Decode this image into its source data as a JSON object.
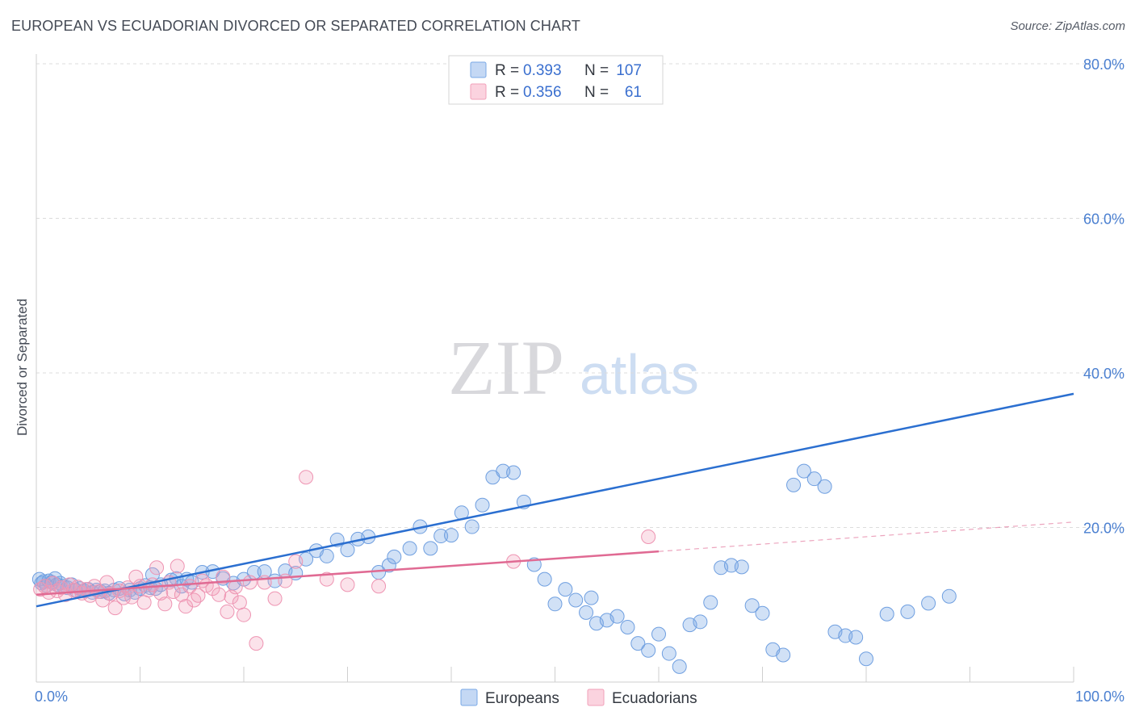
{
  "title": "EUROPEAN VS ECUADORIAN DIVORCED OR SEPARATED CORRELATION CHART",
  "source": "Source: ZipAtlas.com",
  "colors": {
    "europeans": "#7aa9e6",
    "europeans_line": "#2b6fd0",
    "ecuadorians": "#f2a0ba",
    "ecuadorians_line": "#e06a93",
    "tick_text": "#4a7fd0"
  },
  "chart_data": {
    "type": "scatter",
    "title": "EUROPEAN VS ECUADORIAN DIVORCED OR SEPARATED CORRELATION CHART",
    "xlabel": "",
    "ylabel": "Divorced or Separated",
    "xlim": [
      0,
      100
    ],
    "ylim": [
      0,
      80
    ],
    "x_tick_labels": {
      "min": "0.0%",
      "max": "100.0%"
    },
    "y_tick_labels": [
      "20.0%",
      "40.0%",
      "60.0%",
      "80.0%"
    ],
    "y_ticks": [
      20,
      40,
      60,
      80
    ],
    "grid": true,
    "legend": {
      "placement": "top-center",
      "rows": [
        {
          "r_label": "R =",
          "r_value": "0.393",
          "n_label": "N =",
          "n_value": "107"
        },
        {
          "r_label": "R =",
          "r_value": "0.356",
          "n_label": "N =",
          "n_value": "61"
        }
      ]
    },
    "series": [
      {
        "name": "Europeans",
        "trend": {
          "x0": 0,
          "y0": 9.8,
          "x1": 100,
          "y1": 37.3
        },
        "points": [
          [
            0.3,
            13.3
          ],
          [
            0.5,
            12.8
          ],
          [
            0.7,
            13.0
          ],
          [
            1.0,
            12.5
          ],
          [
            1.2,
            13.1
          ],
          [
            1.5,
            12.9
          ],
          [
            1.8,
            13.4
          ],
          [
            2.0,
            12.6
          ],
          [
            2.3,
            12.8
          ],
          [
            2.6,
            12.4
          ],
          [
            3.0,
            12.2
          ],
          [
            3.4,
            12.6
          ],
          [
            3.8,
            11.9
          ],
          [
            4.2,
            12.1
          ],
          [
            4.6,
            11.8
          ],
          [
            5.0,
            12.0
          ],
          [
            5.4,
            11.6
          ],
          [
            5.8,
            11.9
          ],
          [
            6.2,
            11.7
          ],
          [
            6.6,
            11.8
          ],
          [
            7.0,
            11.5
          ],
          [
            7.5,
            11.9
          ],
          [
            8.0,
            12.1
          ],
          [
            8.5,
            11.4
          ],
          [
            9.0,
            11.9
          ],
          [
            9.5,
            11.6
          ],
          [
            10.0,
            12.1
          ],
          [
            10.5,
            12.5
          ],
          [
            11.0,
            12.2
          ],
          [
            11.5,
            12.1
          ],
          [
            12.0,
            12.6
          ],
          [
            11.2,
            13.9
          ],
          [
            13.0,
            13.2
          ],
          [
            13.5,
            13.4
          ],
          [
            14.0,
            12.4
          ],
          [
            14.5,
            13.3
          ],
          [
            15.0,
            12.9
          ],
          [
            16.0,
            14.2
          ],
          [
            17.0,
            14.3
          ],
          [
            18.0,
            13.4
          ],
          [
            19.0,
            12.8
          ],
          [
            20.0,
            13.3
          ],
          [
            21.0,
            14.2
          ],
          [
            22.0,
            14.3
          ],
          [
            23.0,
            13.1
          ],
          [
            24.0,
            14.4
          ],
          [
            25.0,
            14.1
          ],
          [
            26.0,
            15.9
          ],
          [
            27.0,
            17.0
          ],
          [
            28.0,
            16.3
          ],
          [
            29.0,
            18.4
          ],
          [
            30.0,
            17.1
          ],
          [
            31.0,
            18.5
          ],
          [
            32.0,
            18.8
          ],
          [
            33.0,
            14.2
          ],
          [
            34.0,
            15.1
          ],
          [
            34.5,
            16.2
          ],
          [
            36.0,
            17.3
          ],
          [
            37.0,
            20.1
          ],
          [
            38.0,
            17.3
          ],
          [
            39.0,
            18.9
          ],
          [
            40.0,
            19.0
          ],
          [
            41.0,
            21.9
          ],
          [
            42.0,
            20.1
          ],
          [
            43.0,
            22.9
          ],
          [
            44.0,
            26.5
          ],
          [
            45.0,
            27.3
          ],
          [
            46.0,
            27.1
          ],
          [
            47.0,
            23.3
          ],
          [
            48.0,
            15.2
          ],
          [
            49.0,
            13.3
          ],
          [
            50.0,
            10.1
          ],
          [
            51.0,
            12.0
          ],
          [
            52.0,
            10.6
          ],
          [
            53.0,
            9.0
          ],
          [
            53.5,
            10.9
          ],
          [
            54.0,
            7.6
          ],
          [
            55.0,
            8.0
          ],
          [
            56.0,
            8.5
          ],
          [
            57.0,
            7.1
          ],
          [
            58.0,
            5.0
          ],
          [
            59.0,
            4.1
          ],
          [
            60.0,
            6.2
          ],
          [
            61.0,
            3.7
          ],
          [
            62.0,
            2.0
          ],
          [
            63.0,
            7.4
          ],
          [
            64.0,
            7.8
          ],
          [
            65.0,
            10.3
          ],
          [
            66.0,
            14.8
          ],
          [
            67.0,
            15.1
          ],
          [
            68.0,
            14.9
          ],
          [
            69.0,
            9.9
          ],
          [
            70.0,
            8.9
          ],
          [
            71.0,
            4.2
          ],
          [
            72.0,
            3.5
          ],
          [
            73.0,
            25.5
          ],
          [
            74.0,
            27.3
          ],
          [
            75.0,
            26.3
          ],
          [
            76.0,
            25.3
          ],
          [
            77.0,
            6.5
          ],
          [
            78.0,
            6.0
          ],
          [
            79.0,
            5.8
          ],
          [
            80.0,
            3.0
          ],
          [
            82.0,
            8.8
          ],
          [
            84.0,
            9.1
          ],
          [
            86.0,
            10.2
          ],
          [
            88.0,
            11.1
          ]
        ]
      },
      {
        "name": "Ecuadorians",
        "trend": {
          "x0": 0,
          "y0": 11.3,
          "x1": 60,
          "y1": 16.9,
          "dashed_to_x": 100,
          "dashed_to_y": 20.7
        },
        "points": [
          [
            0.4,
            12.0
          ],
          [
            0.8,
            12.4
          ],
          [
            1.2,
            11.6
          ],
          [
            1.6,
            12.8
          ],
          [
            2.0,
            11.8
          ],
          [
            2.4,
            12.2
          ],
          [
            2.8,
            11.3
          ],
          [
            3.2,
            12.6
          ],
          [
            3.6,
            11.9
          ],
          [
            4.0,
            12.3
          ],
          [
            4.4,
            11.5
          ],
          [
            4.8,
            12.0
          ],
          [
            5.2,
            11.2
          ],
          [
            5.6,
            12.4
          ],
          [
            6.0,
            11.7
          ],
          [
            6.4,
            10.6
          ],
          [
            6.8,
            12.9
          ],
          [
            7.2,
            11.4
          ],
          [
            7.6,
            9.6
          ],
          [
            8.0,
            11.8
          ],
          [
            8.4,
            10.9
          ],
          [
            8.8,
            12.2
          ],
          [
            9.2,
            11.0
          ],
          [
            9.6,
            13.6
          ],
          [
            10.0,
            12.4
          ],
          [
            10.4,
            10.3
          ],
          [
            10.8,
            11.9
          ],
          [
            11.2,
            12.6
          ],
          [
            11.6,
            14.8
          ],
          [
            12.0,
            11.5
          ],
          [
            12.4,
            10.1
          ],
          [
            12.8,
            12.9
          ],
          [
            13.2,
            11.7
          ],
          [
            13.6,
            15.0
          ],
          [
            14.0,
            11.3
          ],
          [
            14.4,
            9.8
          ],
          [
            14.8,
            12.4
          ],
          [
            15.2,
            10.6
          ],
          [
            15.6,
            11.2
          ],
          [
            16.0,
            13.1
          ],
          [
            16.4,
            12.5
          ],
          [
            17.0,
            12.1
          ],
          [
            17.6,
            11.3
          ],
          [
            18.0,
            13.6
          ],
          [
            18.4,
            9.1
          ],
          [
            18.8,
            11.0
          ],
          [
            19.2,
            12.3
          ],
          [
            19.6,
            10.3
          ],
          [
            20.0,
            8.7
          ],
          [
            20.6,
            12.9
          ],
          [
            21.2,
            5.0
          ],
          [
            22.0,
            12.9
          ],
          [
            23.0,
            10.8
          ],
          [
            24.0,
            13.1
          ],
          [
            25.0,
            15.6
          ],
          [
            26.0,
            26.5
          ],
          [
            28.0,
            13.3
          ],
          [
            30.0,
            12.6
          ],
          [
            33.0,
            12.4
          ],
          [
            46.0,
            15.6
          ],
          [
            59.0,
            18.8
          ]
        ]
      }
    ]
  },
  "bottom_legend": [
    "Europeans",
    "Ecuadorians"
  ],
  "watermark": {
    "zip": "ZIP",
    "atlas": "atlas"
  }
}
